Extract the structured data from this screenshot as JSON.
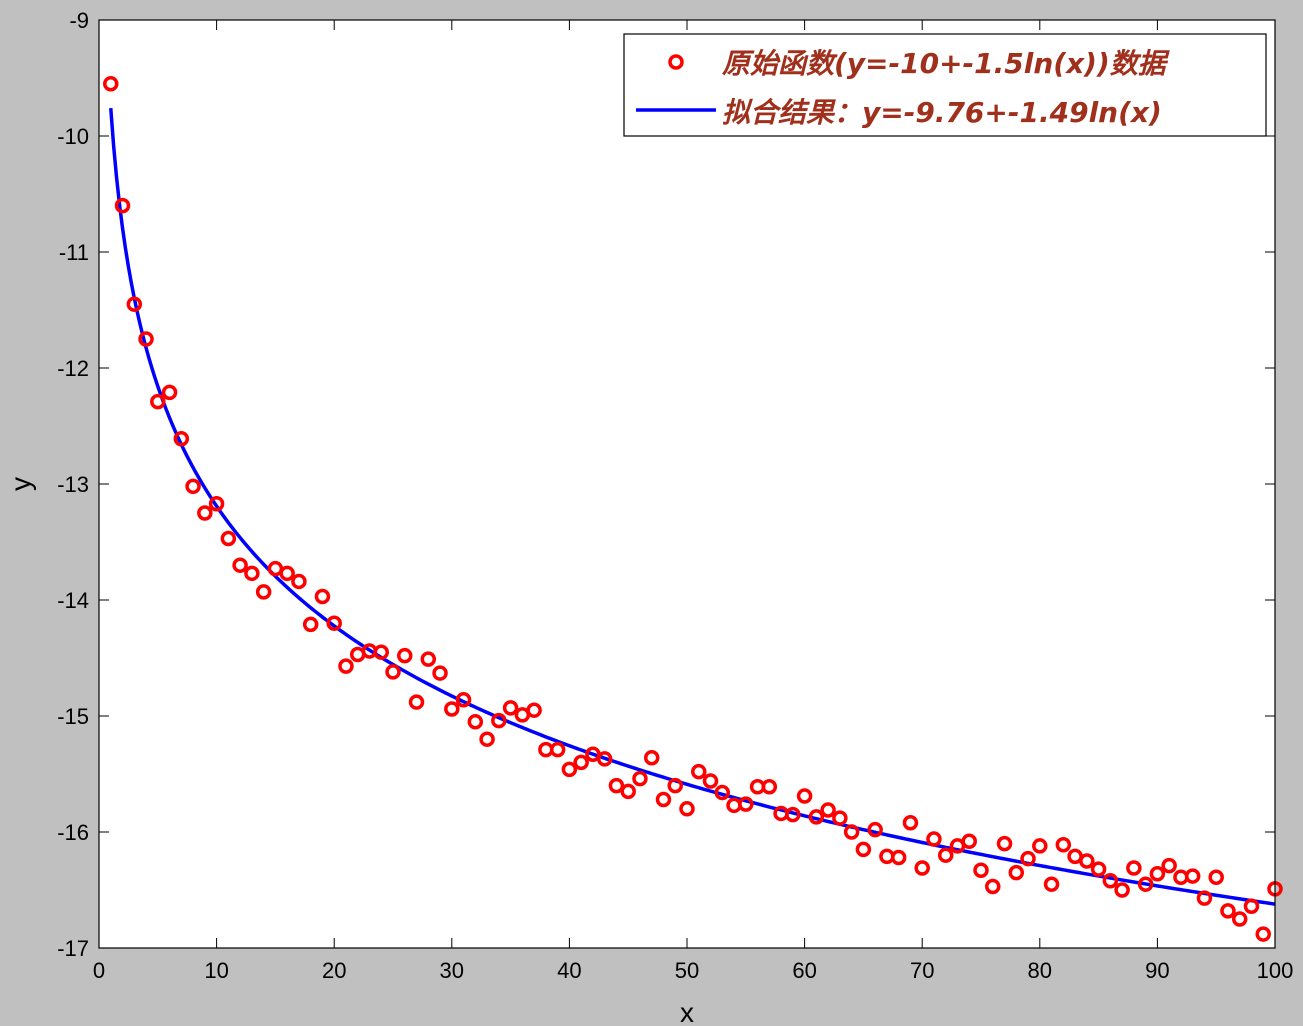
{
  "chart_data": {
    "type": "scatter",
    "xlabel": "x",
    "ylabel": "y",
    "xlim": [
      0,
      100
    ],
    "ylim": [
      -17,
      -9
    ],
    "xticks": [
      0,
      10,
      20,
      30,
      40,
      50,
      60,
      70,
      80,
      90,
      100
    ],
    "yticks": [
      -9,
      -10,
      -11,
      -12,
      -13,
      -14,
      -15,
      -16,
      -17
    ],
    "grid": false,
    "legend_position": "top-right",
    "series": [
      {
        "name": "原始函数(y=-10+-1.5ln(x))数据",
        "kind": "scatter",
        "marker": "circle",
        "color": "#ff0000",
        "x": [
          1,
          2,
          3,
          4,
          5,
          6,
          7,
          8,
          9,
          10,
          11,
          12,
          13,
          14,
          15,
          16,
          17,
          18,
          19,
          20,
          21,
          22,
          23,
          24,
          25,
          26,
          27,
          28,
          29,
          30,
          31,
          32,
          33,
          34,
          35,
          36,
          37,
          38,
          39,
          40,
          41,
          42,
          43,
          44,
          45,
          46,
          47,
          48,
          49,
          50,
          51,
          52,
          53,
          54,
          55,
          56,
          57,
          58,
          59,
          60,
          61,
          62,
          63,
          64,
          65,
          66,
          67,
          68,
          69,
          70,
          71,
          72,
          73,
          74,
          75,
          76,
          77,
          78,
          79,
          80,
          81,
          82,
          83,
          84,
          85,
          86,
          87,
          88,
          89,
          90,
          91,
          92,
          93,
          94,
          95,
          96,
          97,
          98,
          99,
          100
        ],
        "y": [
          -9.55,
          -10.6,
          -11.45,
          -11.75,
          -12.29,
          -12.21,
          -12.61,
          -13.02,
          -13.25,
          -13.17,
          -13.47,
          -13.7,
          -13.77,
          -13.93,
          -13.73,
          -13.77,
          -13.84,
          -14.21,
          -13.97,
          -14.2,
          -14.57,
          -14.47,
          -14.44,
          -14.45,
          -14.62,
          -14.48,
          -14.88,
          -14.51,
          -14.63,
          -14.94,
          -14.86,
          -15.05,
          -15.2,
          -15.04,
          -14.93,
          -14.99,
          -14.95,
          -15.29,
          -15.29,
          -15.46,
          -15.4,
          -15.33,
          -15.37,
          -15.6,
          -15.65,
          -15.54,
          -15.36,
          -15.72,
          -15.6,
          -15.8,
          -15.48,
          -15.56,
          -15.66,
          -15.77,
          -15.76,
          -15.61,
          -15.61,
          -15.84,
          -15.85,
          -15.69,
          -15.87,
          -15.81,
          -15.88,
          -16.0,
          -16.15,
          -15.98,
          -16.21,
          -16.22,
          -15.92,
          -16.31,
          -16.06,
          -16.2,
          -16.12,
          -16.08,
          -16.33,
          -16.47,
          -16.1,
          -16.35,
          -16.23,
          -16.12,
          -16.45,
          -16.11,
          -16.21,
          -16.25,
          -16.32,
          -16.42,
          -16.5,
          -16.31,
          -16.45,
          -16.36,
          -16.29,
          -16.39,
          -16.38,
          -16.57,
          -16.39,
          -16.68,
          -16.75,
          -16.64,
          -16.88,
          -16.49
        ]
      },
      {
        "name": "拟合结果：y=-9.76+-1.49ln(x)",
        "kind": "line",
        "color": "#0000ff",
        "a": -9.76,
        "b": -1.49,
        "x_range": [
          1,
          100
        ]
      }
    ]
  }
}
